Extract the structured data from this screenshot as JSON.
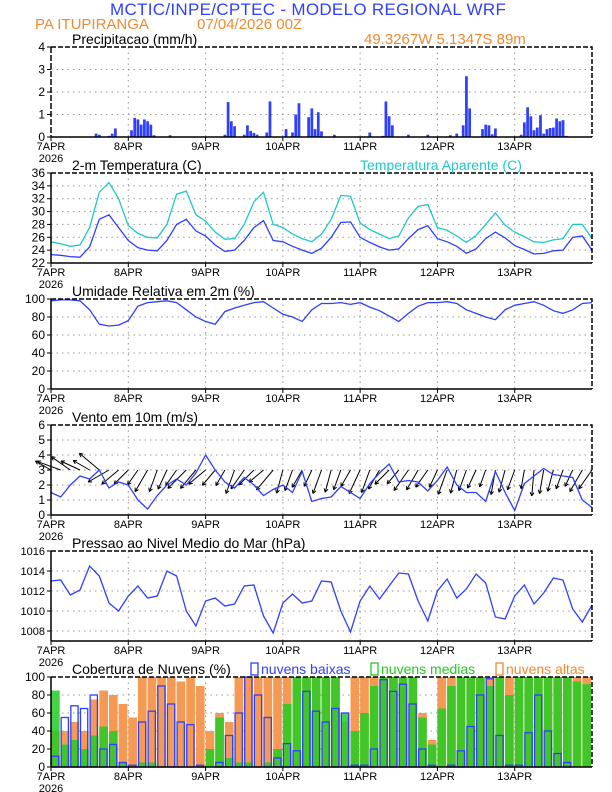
{
  "header": {
    "title": "MCTIC/INPE/CPTEC - MODELO REGIONAL WRF",
    "station": "PA ITUPIRANGA",
    "run": "07/04/2026 00Z",
    "coords": "49.3267W 5.1347S 89m"
  },
  "colors": {
    "blue": "#2f3fff",
    "cyan": "#20c8c8",
    "orange_text": "#f08a30",
    "orange_bars": "#f59a55",
    "green": "#22cc22"
  },
  "time_axis": {
    "start": "7APR 2026 00Z",
    "step_hours": 3,
    "tick_labels": [
      "7APR",
      "8APR",
      "9APR",
      "10APR",
      "11APR",
      "12APR",
      "13APR"
    ],
    "year_label": "2026"
  },
  "chart_data": [
    {
      "type": "bar",
      "title": "Precipitacao (mm/h)",
      "ylim": [
        0,
        4
      ],
      "yticks": [
        0,
        1,
        2,
        3,
        4
      ],
      "grid": true,
      "bars_hour_mm": [
        [
          14,
          0.15
        ],
        [
          15,
          0.1
        ],
        [
          18,
          0.05
        ],
        [
          19,
          0.15
        ],
        [
          20,
          0.38
        ],
        [
          25,
          0.3
        ],
        [
          26,
          0.85
        ],
        [
          27,
          0.78
        ],
        [
          28,
          0.55
        ],
        [
          29,
          0.78
        ],
        [
          30,
          0.7
        ],
        [
          31,
          0.55
        ],
        [
          32,
          0.08
        ],
        [
          37,
          0.08
        ],
        [
          54,
          0.1
        ],
        [
          55,
          1.55
        ],
        [
          56,
          0.7
        ],
        [
          57,
          0.48
        ],
        [
          60,
          0.1
        ],
        [
          61,
          0.52
        ],
        [
          62,
          0.27
        ],
        [
          63,
          0.18
        ],
        [
          64,
          0.1
        ],
        [
          67,
          0.2
        ],
        [
          68,
          1.58
        ],
        [
          73,
          0.35
        ],
        [
          75,
          0.2
        ],
        [
          76,
          1.0
        ],
        [
          77,
          1.5
        ],
        [
          80,
          0.88
        ],
        [
          81,
          1.27
        ],
        [
          82,
          0.35
        ],
        [
          83,
          1.1
        ],
        [
          84,
          0.25
        ],
        [
          88,
          0.1
        ],
        [
          99,
          0.2
        ],
        [
          103,
          0.05
        ],
        [
          104,
          1.58
        ],
        [
          105,
          0.92
        ],
        [
          106,
          0.52
        ],
        [
          111,
          0.1
        ],
        [
          117,
          0.1
        ],
        [
          124,
          0.08
        ],
        [
          126,
          0.15
        ],
        [
          128,
          0.52
        ],
        [
          129,
          2.7
        ],
        [
          130,
          1.27
        ],
        [
          134,
          0.35
        ],
        [
          135,
          0.55
        ],
        [
          136,
          0.52
        ],
        [
          137,
          0.12
        ],
        [
          138,
          0.38
        ],
        [
          146,
          0.1
        ],
        [
          147,
          0.65
        ],
        [
          148,
          1.32
        ],
        [
          149,
          0.92
        ],
        [
          150,
          0.3
        ],
        [
          151,
          0.42
        ],
        [
          152,
          0.97
        ],
        [
          153,
          0.15
        ],
        [
          154,
          0.35
        ],
        [
          155,
          0.4
        ],
        [
          156,
          0.42
        ],
        [
          157,
          0.82
        ],
        [
          158,
          0.7
        ],
        [
          159,
          0.75
        ],
        [
          160,
          0.05
        ]
      ]
    },
    {
      "type": "line",
      "title": "2-m Temperatura (C)",
      "legend": "Temperatura Aparente (C)",
      "ylim": [
        22,
        36
      ],
      "yticks": [
        22,
        24,
        26,
        28,
        30,
        32,
        34,
        36
      ],
      "grid": true,
      "series": [
        {
          "color": "blue",
          "values": [
            23.3,
            23.2,
            23.0,
            22.9,
            24.5,
            28.8,
            29.5,
            27.5,
            25.5,
            24.4,
            24.0,
            23.9,
            25.5,
            28.0,
            28.8,
            27.0,
            26.2,
            24.8,
            23.8,
            24.0,
            25.5,
            27.5,
            28.6,
            25.5,
            25.3,
            24.6,
            24.0,
            23.5,
            24.3,
            26.0,
            28.3,
            28.4,
            26.0,
            25.2,
            24.5,
            24.0,
            24.2,
            25.8,
            27.2,
            27.8,
            25.8,
            25.3,
            24.6,
            23.5,
            24.2,
            25.8,
            26.8,
            25.9,
            24.7,
            24.1,
            23.4,
            23.5,
            23.9,
            24.0,
            26.0,
            26.2,
            24.0
          ]
        },
        {
          "name": "Temperatura Aparente (C)",
          "color": "cyan",
          "values": [
            25.3,
            25.0,
            24.6,
            24.8,
            27.5,
            33.0,
            34.5,
            32.0,
            27.8,
            26.6,
            26.0,
            25.9,
            28.0,
            32.7,
            33.2,
            29.5,
            28.5,
            26.8,
            25.7,
            25.8,
            28.0,
            31.5,
            33.0,
            28.0,
            27.5,
            26.5,
            25.8,
            25.3,
            26.5,
            28.8,
            32.5,
            32.4,
            28.2,
            27.2,
            26.5,
            25.8,
            26.2,
            29.0,
            30.8,
            31.1,
            27.5,
            27.1,
            26.2,
            25.2,
            26.3,
            28.0,
            29.8,
            27.9,
            26.8,
            26.1,
            25.3,
            25.2,
            25.6,
            25.8,
            28.0,
            28.0,
            25.8
          ]
        }
      ]
    },
    {
      "type": "line",
      "title": "Umidade Relativa em 2m (%)",
      "ylim": [
        0,
        100
      ],
      "yticks": [
        0,
        20,
        40,
        60,
        80,
        100
      ],
      "grid": true,
      "series": [
        {
          "color": "blue",
          "values": [
            98,
            99,
            99,
            98,
            88,
            72,
            70,
            71,
            76,
            92,
            96,
            97,
            98,
            96,
            88,
            80,
            75,
            72,
            86,
            90,
            93,
            96,
            97,
            90,
            83,
            80,
            75,
            88,
            95,
            95,
            96,
            94,
            96,
            91,
            87,
            81,
            75,
            84,
            92,
            96,
            96,
            97,
            95,
            88,
            84,
            80,
            77,
            88,
            93,
            95,
            97,
            93,
            87,
            84,
            88,
            95,
            96
          ]
        }
      ]
    },
    {
      "type": "line",
      "title": "Vento em 10m (m/s)",
      "ylim": [
        0,
        6
      ],
      "yticks": [
        0,
        1,
        2,
        3,
        4,
        5,
        6
      ],
      "grid": true,
      "series": [
        {
          "color": "blue",
          "values": [
            1.5,
            1.2,
            2.0,
            2.6,
            2.4,
            3.0,
            1.8,
            2.2,
            2.0,
            1.0,
            0.4,
            1.3,
            2.0,
            2.4,
            2.0,
            2.8,
            4.0,
            3.0,
            2.2,
            1.8,
            2.5,
            2.0,
            1.3,
            1.7,
            2.0,
            1.5,
            2.9,
            0.9,
            1.1,
            1.2,
            1.9,
            1.5,
            1.1,
            2.1,
            2.8,
            3.4,
            2.2,
            2.3,
            2.2,
            1.6,
            2.3,
            3.2,
            2.0,
            1.5,
            1.5,
            0.9,
            2.9,
            1.5,
            0.3,
            2.1,
            2.6,
            3.1,
            2.7,
            2.6,
            2.5,
            1.0,
            0.5
          ]
        }
      ],
      "arrow_direction_deg": [
        300,
        290,
        305,
        295,
        300,
        310,
        240,
        230,
        225,
        215,
        210,
        200,
        205,
        215,
        225,
        220,
        230,
        220,
        210,
        200,
        215,
        225,
        230,
        220,
        195,
        200,
        210,
        205,
        200,
        195,
        200,
        210,
        205,
        200,
        210,
        225,
        220,
        215,
        210,
        215,
        205,
        200,
        195,
        200,
        205,
        200,
        190,
        195,
        200,
        190,
        185,
        190,
        195,
        200,
        205,
        210,
        215
      ]
    },
    {
      "type": "line",
      "title": "Pressao ao Nivel Medio do Mar (hPa)",
      "ylim": [
        1007,
        1016
      ],
      "yticks": [
        1008,
        1010,
        1012,
        1014,
        1016
      ],
      "grid": true,
      "series": [
        {
          "color": "blue",
          "values": [
            1013.0,
            1013.1,
            1011.6,
            1012.1,
            1014.5,
            1013.5,
            1010.8,
            1010.0,
            1011.5,
            1012.5,
            1011.3,
            1011.5,
            1014.0,
            1013.5,
            1010.0,
            1008.5,
            1011.0,
            1011.3,
            1010.5,
            1010.7,
            1012.5,
            1012.6,
            1009.5,
            1007.8,
            1010.8,
            1011.7,
            1010.8,
            1011.0,
            1013.0,
            1012.9,
            1010.0,
            1007.9,
            1011.0,
            1012.5,
            1011.2,
            1012.5,
            1013.8,
            1013.7,
            1011.0,
            1009.0,
            1012.0,
            1013.2,
            1011.3,
            1012.2,
            1013.7,
            1012.8,
            1009.4,
            1009.2,
            1011.5,
            1012.6,
            1010.7,
            1011.8,
            1013.3,
            1013.1,
            1010.2,
            1008.9,
            1010.6
          ]
        }
      ]
    },
    {
      "type": "bar",
      "title": "Cobertura de Nuvens (%)",
      "ylim": [
        0,
        100
      ],
      "yticks": [
        0,
        20,
        40,
        60,
        80,
        100
      ],
      "grid": true,
      "series": [
        {
          "name": "nuvens altas",
          "color": "orange_bars",
          "values": [
            40,
            40,
            50,
            40,
            75,
            85,
            80,
            70,
            55,
            100,
            100,
            100,
            100,
            95,
            100,
            90,
            40,
            60,
            50,
            100,
            100,
            100,
            100,
            100,
            100,
            100,
            100,
            100,
            100,
            100,
            50,
            100,
            100,
            100,
            100,
            100,
            100,
            100,
            60,
            30,
            100,
            100,
            100,
            100,
            100,
            100,
            100,
            100,
            100,
            100,
            100,
            100,
            100,
            100,
            100,
            100
          ]
        },
        {
          "name": "nuvens medias",
          "color": "green",
          "values": [
            85,
            25,
            30,
            20,
            35,
            45,
            40,
            5,
            0,
            5,
            5,
            0,
            0,
            0,
            0,
            0,
            20,
            55,
            10,
            5,
            5,
            0,
            5,
            20,
            70,
            100,
            100,
            100,
            100,
            100,
            60,
            40,
            60,
            90,
            100,
            100,
            100,
            100,
            55,
            25,
            65,
            90,
            100,
            100,
            100,
            90,
            100,
            80,
            100,
            100,
            100,
            100,
            100,
            100,
            95,
            92
          ]
        },
        {
          "name": "nuvens baixas",
          "color": "blue",
          "values": [
            12,
            55,
            68,
            65,
            80,
            20,
            25,
            5,
            2,
            50,
            62,
            90,
            70,
            50,
            47,
            2,
            0,
            5,
            35,
            60,
            100,
            80,
            55,
            10,
            26,
            18,
            84,
            62,
            50,
            65,
            60,
            2,
            2,
            20,
            97,
            84,
            92,
            70,
            20,
            2,
            0,
            2,
            18,
            45,
            80,
            98,
            35,
            2,
            2,
            38,
            80,
            40,
            15,
            5,
            0,
            0
          ]
        }
      ],
      "legend": [
        "nuvens baixas",
        "nuvens medias",
        "nuvens altas"
      ]
    }
  ]
}
